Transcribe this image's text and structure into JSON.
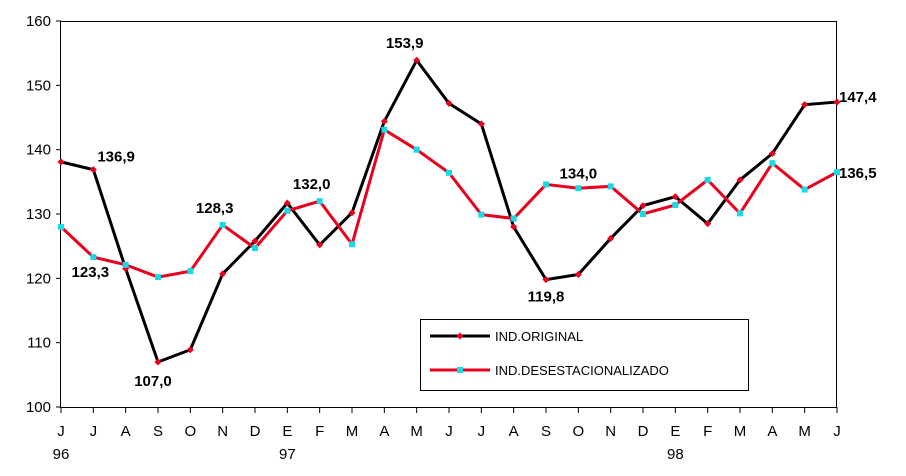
{
  "chart_data": {
    "type": "line",
    "x": [
      "J",
      "J",
      "A",
      "S",
      "O",
      "N",
      "D",
      "E",
      "F",
      "M",
      "A",
      "M",
      "J",
      "J",
      "A",
      "S",
      "O",
      "N",
      "D",
      "E",
      "F",
      "M",
      "A",
      "M",
      "J"
    ],
    "year_labels": [
      {
        "index": 0,
        "label": "96"
      },
      {
        "index": 7,
        "label": "97"
      },
      {
        "index": 19,
        "label": "98"
      }
    ],
    "ylim": [
      100,
      160
    ],
    "yticks": [
      100,
      110,
      120,
      130,
      140,
      150,
      160
    ],
    "grid": false,
    "legend_position": "bottom-right",
    "series": [
      {
        "name": "IND.ORIGINAL",
        "color": "#000000",
        "marker_color": "#e8001c",
        "values": [
          138.1,
          136.9,
          121.5,
          107.0,
          108.9,
          120.7,
          125.8,
          131.7,
          125.2,
          130.2,
          144.4,
          153.9,
          147.2,
          144.0,
          128.0,
          119.8,
          120.6,
          126.2,
          131.3,
          132.7,
          128.5,
          135.3,
          139.4,
          147.0,
          147.4
        ]
      },
      {
        "name": "IND.DESESTACIONALIZADO",
        "color": "#e8001c",
        "marker_color": "#1ad9e6",
        "values": [
          128.0,
          123.3,
          122.1,
          120.2,
          121.1,
          128.3,
          124.7,
          130.5,
          132.0,
          125.3,
          143.1,
          140.0,
          136.4,
          129.9,
          129.3,
          134.6,
          134.0,
          134.3,
          130.0,
          131.4,
          135.3,
          130.1,
          137.9,
          133.8,
          136.5
        ]
      }
    ],
    "annotations": [
      {
        "series": 0,
        "index": 1,
        "text": "136,9"
      },
      {
        "series": 1,
        "index": 1,
        "text": "123,3"
      },
      {
        "series": 0,
        "index": 3,
        "text": "107,0"
      },
      {
        "series": 1,
        "index": 5,
        "text": "128,3"
      },
      {
        "series": 1,
        "index": 8,
        "text": "132,0"
      },
      {
        "series": 0,
        "index": 11,
        "text": "153,9"
      },
      {
        "series": 1,
        "index": 16,
        "text": "134,0"
      },
      {
        "series": 0,
        "index": 15,
        "text": "119,8"
      },
      {
        "series": 0,
        "index": 24,
        "text": "147,4"
      },
      {
        "series": 1,
        "index": 24,
        "text": "136,5"
      }
    ]
  }
}
